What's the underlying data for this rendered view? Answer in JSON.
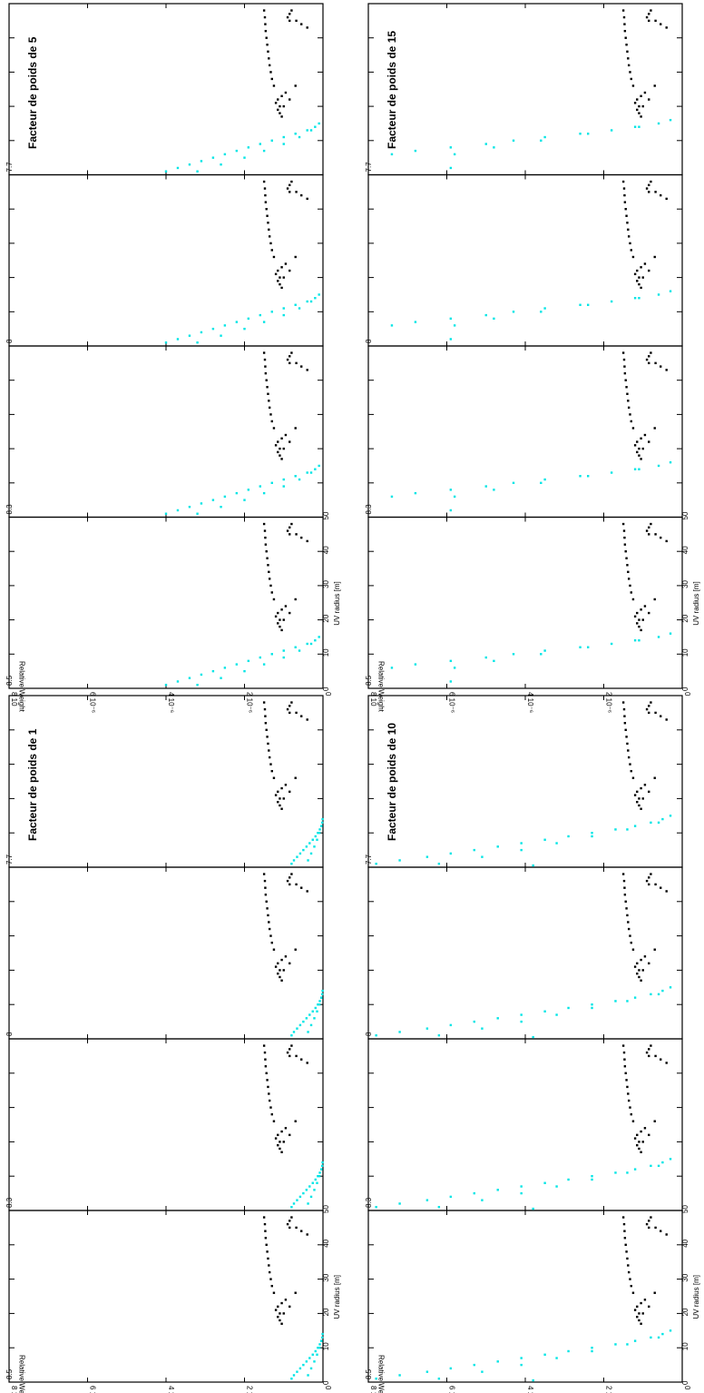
{
  "figure": {
    "y_axis_label": "Relative Weight",
    "x_axis_label": "UV radius [m]",
    "y_tick_labels": [
      "0",
      "2 10⁻⁶",
      "4 10⁻⁶",
      "6 10⁻⁶",
      "8 10"
    ],
    "x_tick_labels": [
      "0",
      "10",
      "20",
      "30",
      "40",
      "50"
    ],
    "panel_labels": [
      "8.5",
      "8.3",
      "8",
      "7.7"
    ]
  },
  "colors": {
    "model": "#00e5e5",
    "measured": "#000000"
  },
  "chart_data": [
    {
      "type": "scatter",
      "title": "Facteur de poids de 1",
      "xlabel": "UV radius [m]",
      "ylabel": "Relative Weight",
      "xlim": [
        0,
        50
      ],
      "ylim": [
        0,
        8e-06
      ],
      "panels": [
        "8.5",
        "8.3",
        "8",
        "7.7"
      ],
      "series": [
        {
          "points": [
            [
              1,
              8e-07
            ],
            [
              2,
              7.4e-07
            ],
            [
              3,
              6.6e-07
            ],
            [
              4,
              5.8e-07
            ],
            [
              5,
              5e-07
            ],
            [
              6,
              4.2e-07
            ],
            [
              7,
              3.4e-07
            ],
            [
              8,
              2.6e-07
            ],
            [
              9,
              1.9e-07
            ],
            [
              10,
              1.3e-07
            ],
            [
              11,
              8e-08
            ],
            [
              12,
              4e-08
            ],
            [
              13,
              2e-08
            ],
            [
              14,
              1e-08
            ],
            [
              2,
              3.8e-07
            ],
            [
              4,
              3e-07
            ],
            [
              6,
              2.2e-07
            ],
            [
              8,
              1.5e-07
            ],
            [
              10,
              9e-08
            ],
            [
              12,
              4e-08
            ]
          ]
        },
        {
          "points": [
            [
              17,
              1.05e-06
            ],
            [
              18,
              1.1e-06
            ],
            [
              19,
              1.15e-06
            ],
            [
              20,
              1.1e-06
            ],
            [
              21,
              1.2e-06
            ],
            [
              22,
              1.15e-06
            ],
            [
              23,
              1.05e-06
            ],
            [
              24,
              9.5e-07
            ],
            [
              20,
              1e-06
            ],
            [
              22,
              8.5e-07
            ],
            [
              26,
              7e-07
            ],
            [
              26,
              1.25e-06
            ],
            [
              28,
              1.3e-06
            ],
            [
              30,
              1.33e-06
            ],
            [
              32,
              1.36e-06
            ],
            [
              34,
              1.38e-06
            ],
            [
              36,
              1.4e-06
            ],
            [
              38,
              1.42e-06
            ],
            [
              40,
              1.44e-06
            ],
            [
              42,
              1.46e-06
            ],
            [
              44,
              1.47e-06
            ],
            [
              46,
              1.48e-06
            ],
            [
              48,
              1.5e-06
            ],
            [
              45,
              8.5e-07
            ],
            [
              46,
              9e-07
            ],
            [
              47,
              8.5e-07
            ],
            [
              48,
              8e-07
            ],
            [
              45,
              6.8e-07
            ],
            [
              44,
              5.5e-07
            ],
            [
              43,
              4e-07
            ]
          ]
        }
      ]
    },
    {
      "type": "scatter",
      "title": "Facteur de poids de 5",
      "xlabel": "UV radius [m]",
      "ylabel": "Relative Weight",
      "xlim": [
        0,
        50
      ],
      "ylim": [
        0,
        8e-06
      ],
      "panels": [
        "8.5",
        "8.3",
        "8",
        "7.7"
      ],
      "series": [
        {
          "points": [
            [
              1,
              4e-06
            ],
            [
              2,
              3.7e-06
            ],
            [
              3,
              3.4e-06
            ],
            [
              4,
              3.1e-06
            ],
            [
              5,
              2.8e-06
            ],
            [
              6,
              2.5e-06
            ],
            [
              7,
              2.2e-06
            ],
            [
              8,
              1.9e-06
            ],
            [
              9,
              1.6e-06
            ],
            [
              10,
              1.3e-06
            ],
            [
              11,
              1e-06
            ],
            [
              12,
              7e-07
            ],
            [
              13,
              4e-07
            ],
            [
              14,
              2e-07
            ],
            [
              15,
              1e-07
            ],
            [
              1,
              3.2e-06
            ],
            [
              3,
              2.6e-06
            ],
            [
              5,
              2e-06
            ],
            [
              7,
              1.5e-06
            ],
            [
              9,
              1e-06
            ],
            [
              11,
              6e-07
            ],
            [
              13,
              3e-07
            ]
          ]
        },
        {
          "points": [
            [
              17,
              1.05e-06
            ],
            [
              18,
              1.1e-06
            ],
            [
              19,
              1.15e-06
            ],
            [
              20,
              1.1e-06
            ],
            [
              21,
              1.2e-06
            ],
            [
              22,
              1.15e-06
            ],
            [
              23,
              1.05e-06
            ],
            [
              24,
              9.5e-07
            ],
            [
              20,
              1e-06
            ],
            [
              22,
              8.5e-07
            ],
            [
              26,
              7e-07
            ],
            [
              26,
              1.25e-06
            ],
            [
              28,
              1.3e-06
            ],
            [
              30,
              1.33e-06
            ],
            [
              32,
              1.36e-06
            ],
            [
              34,
              1.38e-06
            ],
            [
              36,
              1.4e-06
            ],
            [
              38,
              1.42e-06
            ],
            [
              40,
              1.44e-06
            ],
            [
              42,
              1.46e-06
            ],
            [
              44,
              1.47e-06
            ],
            [
              46,
              1.48e-06
            ],
            [
              48,
              1.5e-06
            ],
            [
              45,
              8.5e-07
            ],
            [
              46,
              9e-07
            ],
            [
              47,
              8.5e-07
            ],
            [
              48,
              8e-07
            ],
            [
              45,
              6.8e-07
            ],
            [
              44,
              5.5e-07
            ],
            [
              43,
              4e-07
            ]
          ]
        }
      ]
    },
    {
      "type": "scatter",
      "title": "Facteur de poids de 10",
      "xlabel": "UV radius [m]",
      "ylabel": "Relative Weight",
      "xlim": [
        0,
        50
      ],
      "ylim": [
        0,
        8e-06
      ],
      "panels": [
        "8.5",
        "8.3",
        "8",
        "7.7"
      ],
      "series": [
        {
          "points": [
            [
              1,
              7.8e-06
            ],
            [
              2,
              7.2e-06
            ],
            [
              3,
              6.5e-06
            ],
            [
              4,
              5.9e-06
            ],
            [
              5,
              5.3e-06
            ],
            [
              6,
              4.7e-06
            ],
            [
              7,
              4.1e-06
            ],
            [
              8,
              3.5e-06
            ],
            [
              9,
              2.9e-06
            ],
            [
              10,
              2.3e-06
            ],
            [
              11,
              1.7e-06
            ],
            [
              12,
              1.2e-06
            ],
            [
              13,
              8e-07
            ],
            [
              14,
              5e-07
            ],
            [
              15,
              3e-07
            ],
            [
              1,
              6.2e-06
            ],
            [
              3,
              5.1e-06
            ],
            [
              5,
              4.1e-06
            ],
            [
              7,
              3.2e-06
            ],
            [
              9,
              2.3e-06
            ],
            [
              11,
              1.4e-06
            ],
            [
              13,
              6e-07
            ],
            [
              0.5,
              3.8e-06
            ]
          ]
        },
        {
          "points": [
            [
              17,
              1.05e-06
            ],
            [
              18,
              1.1e-06
            ],
            [
              19,
              1.15e-06
            ],
            [
              20,
              1.1e-06
            ],
            [
              21,
              1.2e-06
            ],
            [
              22,
              1.15e-06
            ],
            [
              23,
              1.05e-06
            ],
            [
              24,
              9.5e-07
            ],
            [
              20,
              1e-06
            ],
            [
              22,
              8.5e-07
            ],
            [
              26,
              7e-07
            ],
            [
              26,
              1.25e-06
            ],
            [
              28,
              1.3e-06
            ],
            [
              30,
              1.33e-06
            ],
            [
              32,
              1.36e-06
            ],
            [
              34,
              1.38e-06
            ],
            [
              36,
              1.4e-06
            ],
            [
              38,
              1.42e-06
            ],
            [
              40,
              1.44e-06
            ],
            [
              42,
              1.46e-06
            ],
            [
              44,
              1.47e-06
            ],
            [
              46,
              1.48e-06
            ],
            [
              48,
              1.5e-06
            ],
            [
              45,
              8.5e-07
            ],
            [
              46,
              9e-07
            ],
            [
              47,
              8.5e-07
            ],
            [
              48,
              8e-07
            ],
            [
              45,
              6.8e-07
            ],
            [
              44,
              5.5e-07
            ],
            [
              43,
              4e-07
            ]
          ]
        }
      ]
    },
    {
      "type": "scatter",
      "title": "Facteur de poids de 15",
      "xlabel": "UV radius [m]",
      "ylabel": "Relative Weight",
      "xlim": [
        0,
        50
      ],
      "ylim": [
        0,
        8e-06
      ],
      "panels": [
        "8.5",
        "8.3",
        "8",
        "7.7"
      ],
      "series": [
        {
          "points": [
            [
              6,
              7.4e-06
            ],
            [
              7,
              6.8e-06
            ],
            [
              8,
              5.9e-06
            ],
            [
              9,
              5e-06
            ],
            [
              10,
              4.3e-06
            ],
            [
              11,
              3.5e-06
            ],
            [
              12,
              2.6e-06
            ],
            [
              13,
              1.8e-06
            ],
            [
              14,
              1.1e-06
            ],
            [
              15,
              6e-07
            ],
            [
              16,
              3e-07
            ],
            [
              6,
              5.8e-06
            ],
            [
              8,
              4.8e-06
            ],
            [
              10,
              3.6e-06
            ],
            [
              12,
              2.4e-06
            ],
            [
              14,
              1.2e-06
            ],
            [
              2,
              5.9e-06
            ]
          ]
        },
        {
          "points": [
            [
              17,
              1.05e-06
            ],
            [
              18,
              1.1e-06
            ],
            [
              19,
              1.15e-06
            ],
            [
              20,
              1.1e-06
            ],
            [
              21,
              1.2e-06
            ],
            [
              22,
              1.15e-06
            ],
            [
              23,
              1.05e-06
            ],
            [
              24,
              9.5e-07
            ],
            [
              20,
              1e-06
            ],
            [
              22,
              8.5e-07
            ],
            [
              26,
              7e-07
            ],
            [
              26,
              1.25e-06
            ],
            [
              28,
              1.3e-06
            ],
            [
              30,
              1.33e-06
            ],
            [
              32,
              1.36e-06
            ],
            [
              34,
              1.38e-06
            ],
            [
              36,
              1.4e-06
            ],
            [
              38,
              1.42e-06
            ],
            [
              40,
              1.44e-06
            ],
            [
              42,
              1.46e-06
            ],
            [
              44,
              1.47e-06
            ],
            [
              46,
              1.48e-06
            ],
            [
              48,
              1.5e-06
            ],
            [
              45,
              8.5e-07
            ],
            [
              46,
              9e-07
            ],
            [
              47,
              8.5e-07
            ],
            [
              48,
              8e-07
            ],
            [
              45,
              6.8e-07
            ],
            [
              44,
              5.5e-07
            ],
            [
              43,
              4e-07
            ]
          ]
        }
      ]
    }
  ]
}
